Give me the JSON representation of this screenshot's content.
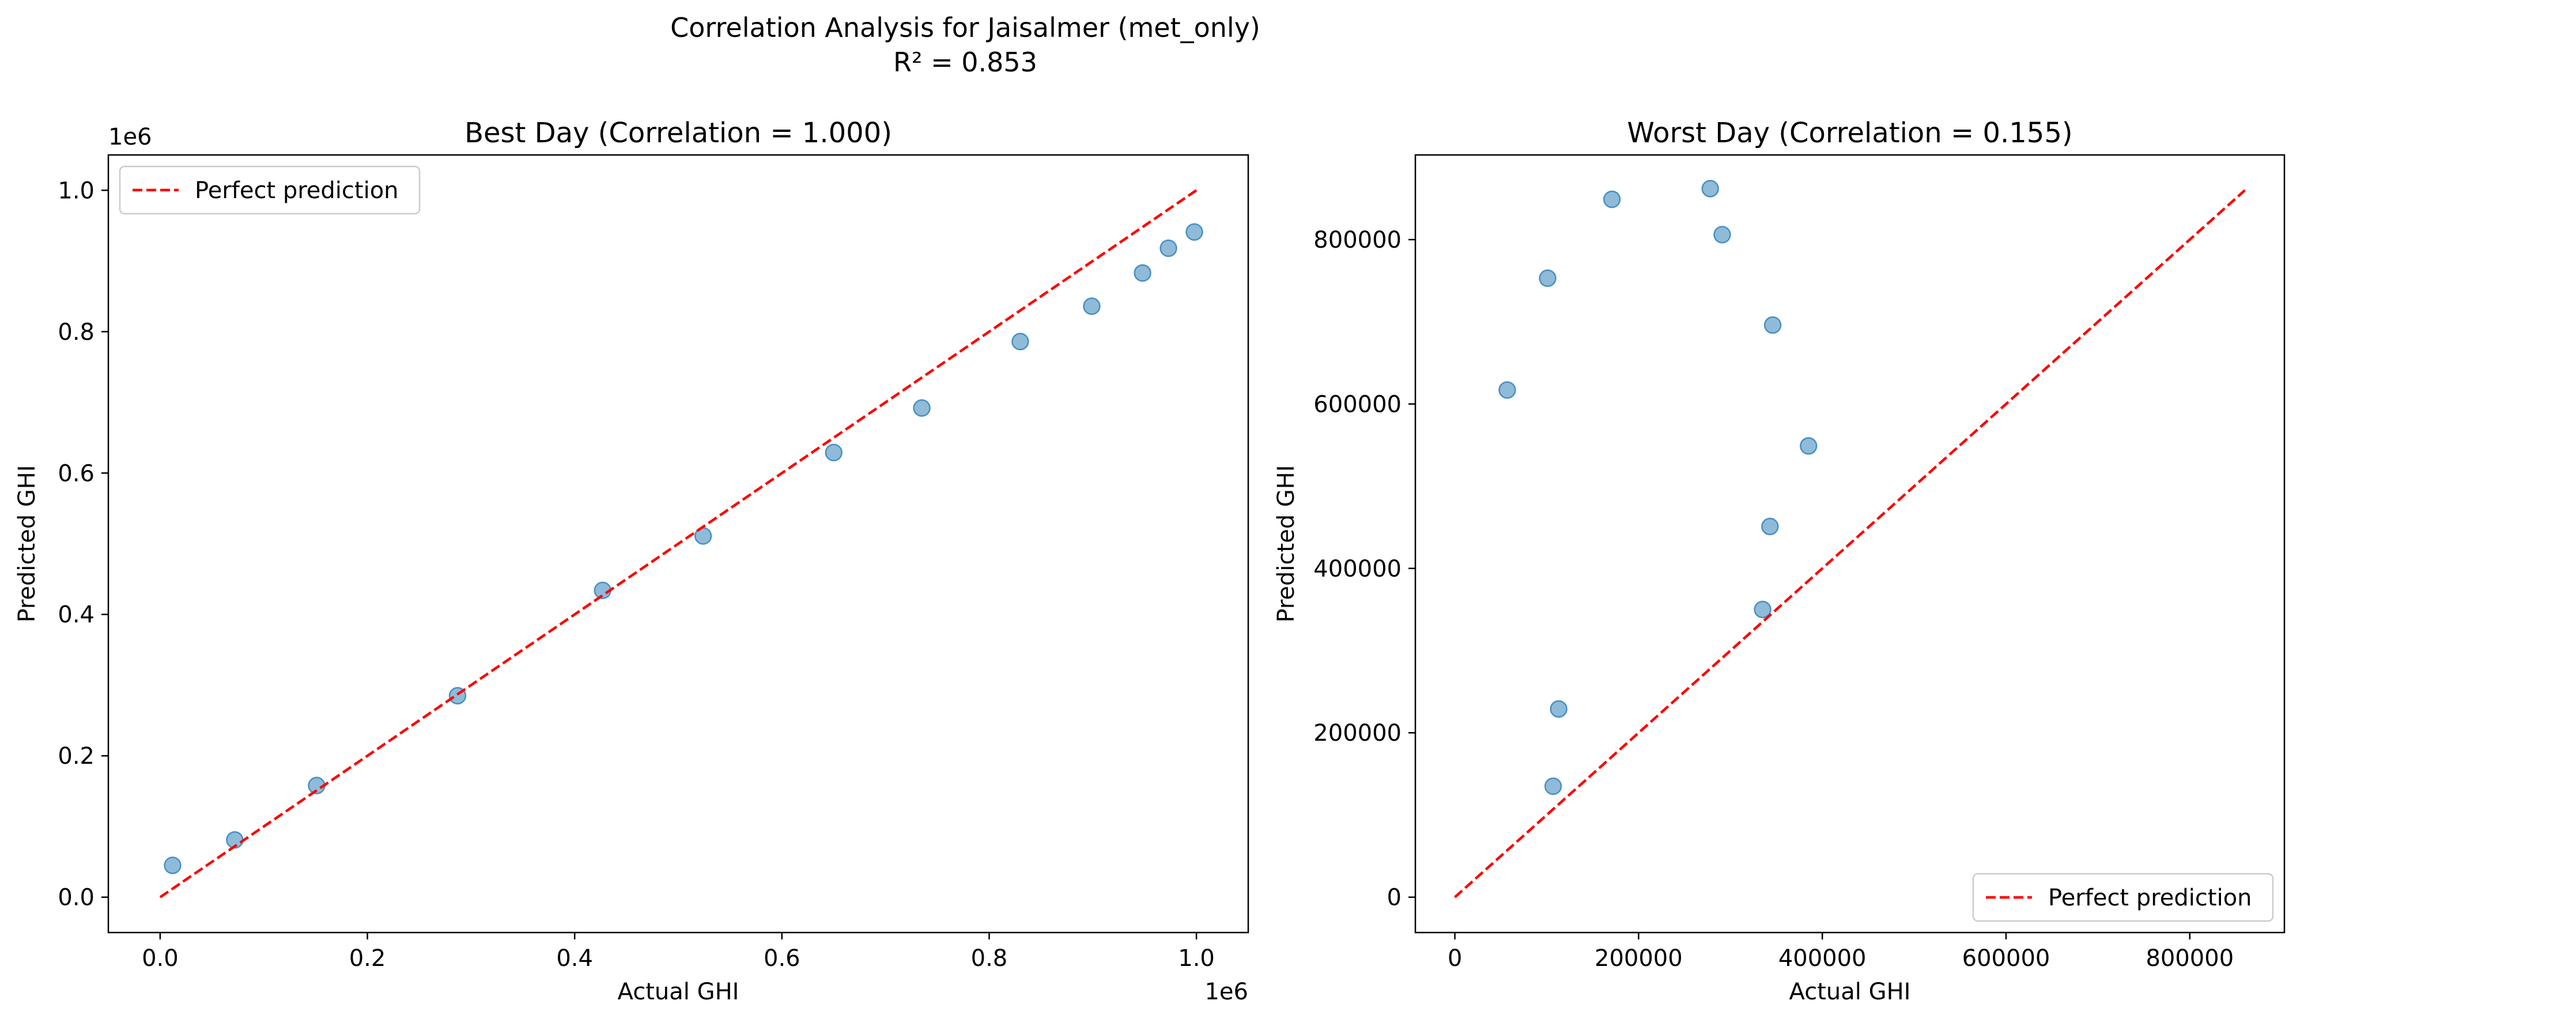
{
  "figure": {
    "suptitle_line1": "Correlation Analysis for Jaisalmer (met_only)",
    "suptitle_line2": "R² = 0.853"
  },
  "colors": {
    "points": "#1f77b4",
    "perfect_line": "#ff0000",
    "axes": "#000000",
    "background": "#ffffff"
  },
  "chart_data": [
    {
      "type": "scatter",
      "title": "Best Day (Correlation = 1.000)",
      "xlabel": "Actual GHI",
      "ylabel": "Predicted GHI",
      "x_offset_label": "1e6",
      "y_offset_label": "1e6",
      "xlim": [
        -0.05,
        1.05
      ],
      "ylim": [
        -0.05,
        1.05
      ],
      "xticks": [
        0.0,
        0.2,
        0.4,
        0.6,
        0.8,
        1.0
      ],
      "xtick_labels": [
        "0.0",
        "0.2",
        "0.4",
        "0.6",
        "0.8",
        "1.0"
      ],
      "yticks": [
        0.0,
        0.2,
        0.4,
        0.6,
        0.8,
        1.0
      ],
      "ytick_labels": [
        "0.0",
        "0.2",
        "0.4",
        "0.6",
        "0.8",
        "1.0"
      ],
      "grid": false,
      "legend": {
        "placement": "upper-left",
        "entries": [
          "Perfect prediction"
        ]
      },
      "series": [
        {
          "kind": "points",
          "x": [
            0.012,
            0.072,
            0.151,
            0.287,
            0.427,
            0.524,
            0.65,
            0.735,
            0.83,
            0.899,
            0.948,
            0.973,
            0.998
          ],
          "y": [
            0.045,
            0.081,
            0.158,
            0.285,
            0.434,
            0.511,
            0.629,
            0.692,
            0.786,
            0.836,
            0.883,
            0.918,
            0.941
          ]
        },
        {
          "name": "Perfect prediction",
          "kind": "dashed-line",
          "x": [
            0.0,
            1.0
          ],
          "y": [
            0.0,
            1.0
          ]
        }
      ]
    },
    {
      "type": "scatter",
      "title": "Worst Day (Correlation = 0.155)",
      "xlabel": "Actual GHI",
      "ylabel": "Predicted GHI",
      "xlim": [
        -43000,
        903000
      ],
      "ylim": [
        -43000,
        903000
      ],
      "xticks": [
        0,
        200000,
        400000,
        600000,
        800000
      ],
      "xtick_labels": [
        "0",
        "200000",
        "400000",
        "600000",
        "800000"
      ],
      "yticks": [
        0,
        200000,
        400000,
        600000,
        800000
      ],
      "ytick_labels": [
        "0",
        "200000",
        "400000",
        "600000",
        "800000"
      ],
      "grid": false,
      "legend": {
        "placement": "lower-right",
        "entries": [
          "Perfect prediction"
        ]
      },
      "series": [
        {
          "kind": "points",
          "x": [
            57000,
            101000,
            107000,
            113000,
            171000,
            278000,
            291000,
            335000,
            343000,
            346000,
            385000
          ],
          "y": [
            617000,
            753000,
            135000,
            229000,
            849000,
            862000,
            806000,
            350000,
            451000,
            696000,
            549000
          ]
        },
        {
          "name": "Perfect prediction",
          "kind": "dashed-line",
          "x": [
            0,
            860000
          ],
          "y": [
            0,
            860000
          ]
        }
      ]
    }
  ]
}
